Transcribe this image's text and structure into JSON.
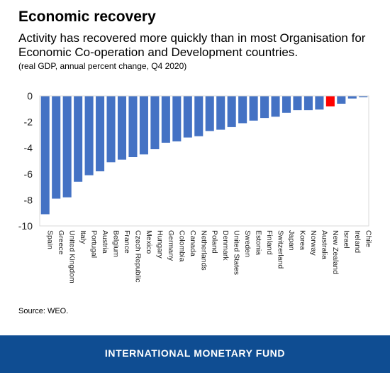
{
  "header": {
    "title": "Economic recovery",
    "subtitle": "Activity has recovered more quickly than in most Organisation for Economic Co-operation and Development countries.",
    "units": "(real GDP, annual percent change, Q4 2020)"
  },
  "source": "Source: WEO.",
  "footer": {
    "label": "INTERNATIONAL MONETARY FUND",
    "background": "#0f4d92"
  },
  "colors": {
    "bar": "#4472c4",
    "highlight": "#ff0000",
    "axis": "#d9d9d9"
  },
  "chart_data": {
    "type": "bar",
    "categories": [
      "Spain",
      "Greece",
      "United Kingdom",
      "Italy",
      "Portugal",
      "Austria",
      "Belgium",
      "France",
      "Czech Republic",
      "Mexico",
      "Hungary",
      "Germany",
      "Colombia",
      "Canada",
      "Netherlands",
      "Poland",
      "Denmark",
      "United States",
      "Sweden",
      "Estonia",
      "Finland",
      "Switzerland",
      "Japan",
      "Korea",
      "Norway",
      "Australia",
      "New Zealand",
      "Israel",
      "Ireland",
      "Chile"
    ],
    "values": [
      -9.1,
      -7.9,
      -7.8,
      -6.6,
      -6.1,
      -5.8,
      -5.1,
      -4.9,
      -4.7,
      -4.5,
      -4.1,
      -3.6,
      -3.5,
      -3.2,
      -3.1,
      -2.7,
      -2.6,
      -2.4,
      -2.1,
      -1.9,
      -1.7,
      -1.6,
      -1.3,
      -1.1,
      -1.1,
      -1.05,
      -0.8,
      -0.6,
      -0.2,
      -0.1
    ],
    "highlight": "New Zealand",
    "yticks": [
      0,
      -2,
      -4,
      -6,
      -8,
      -10
    ],
    "ylim": [
      -10,
      0
    ],
    "xlabel": "",
    "ylabel": "",
    "grid": false
  }
}
